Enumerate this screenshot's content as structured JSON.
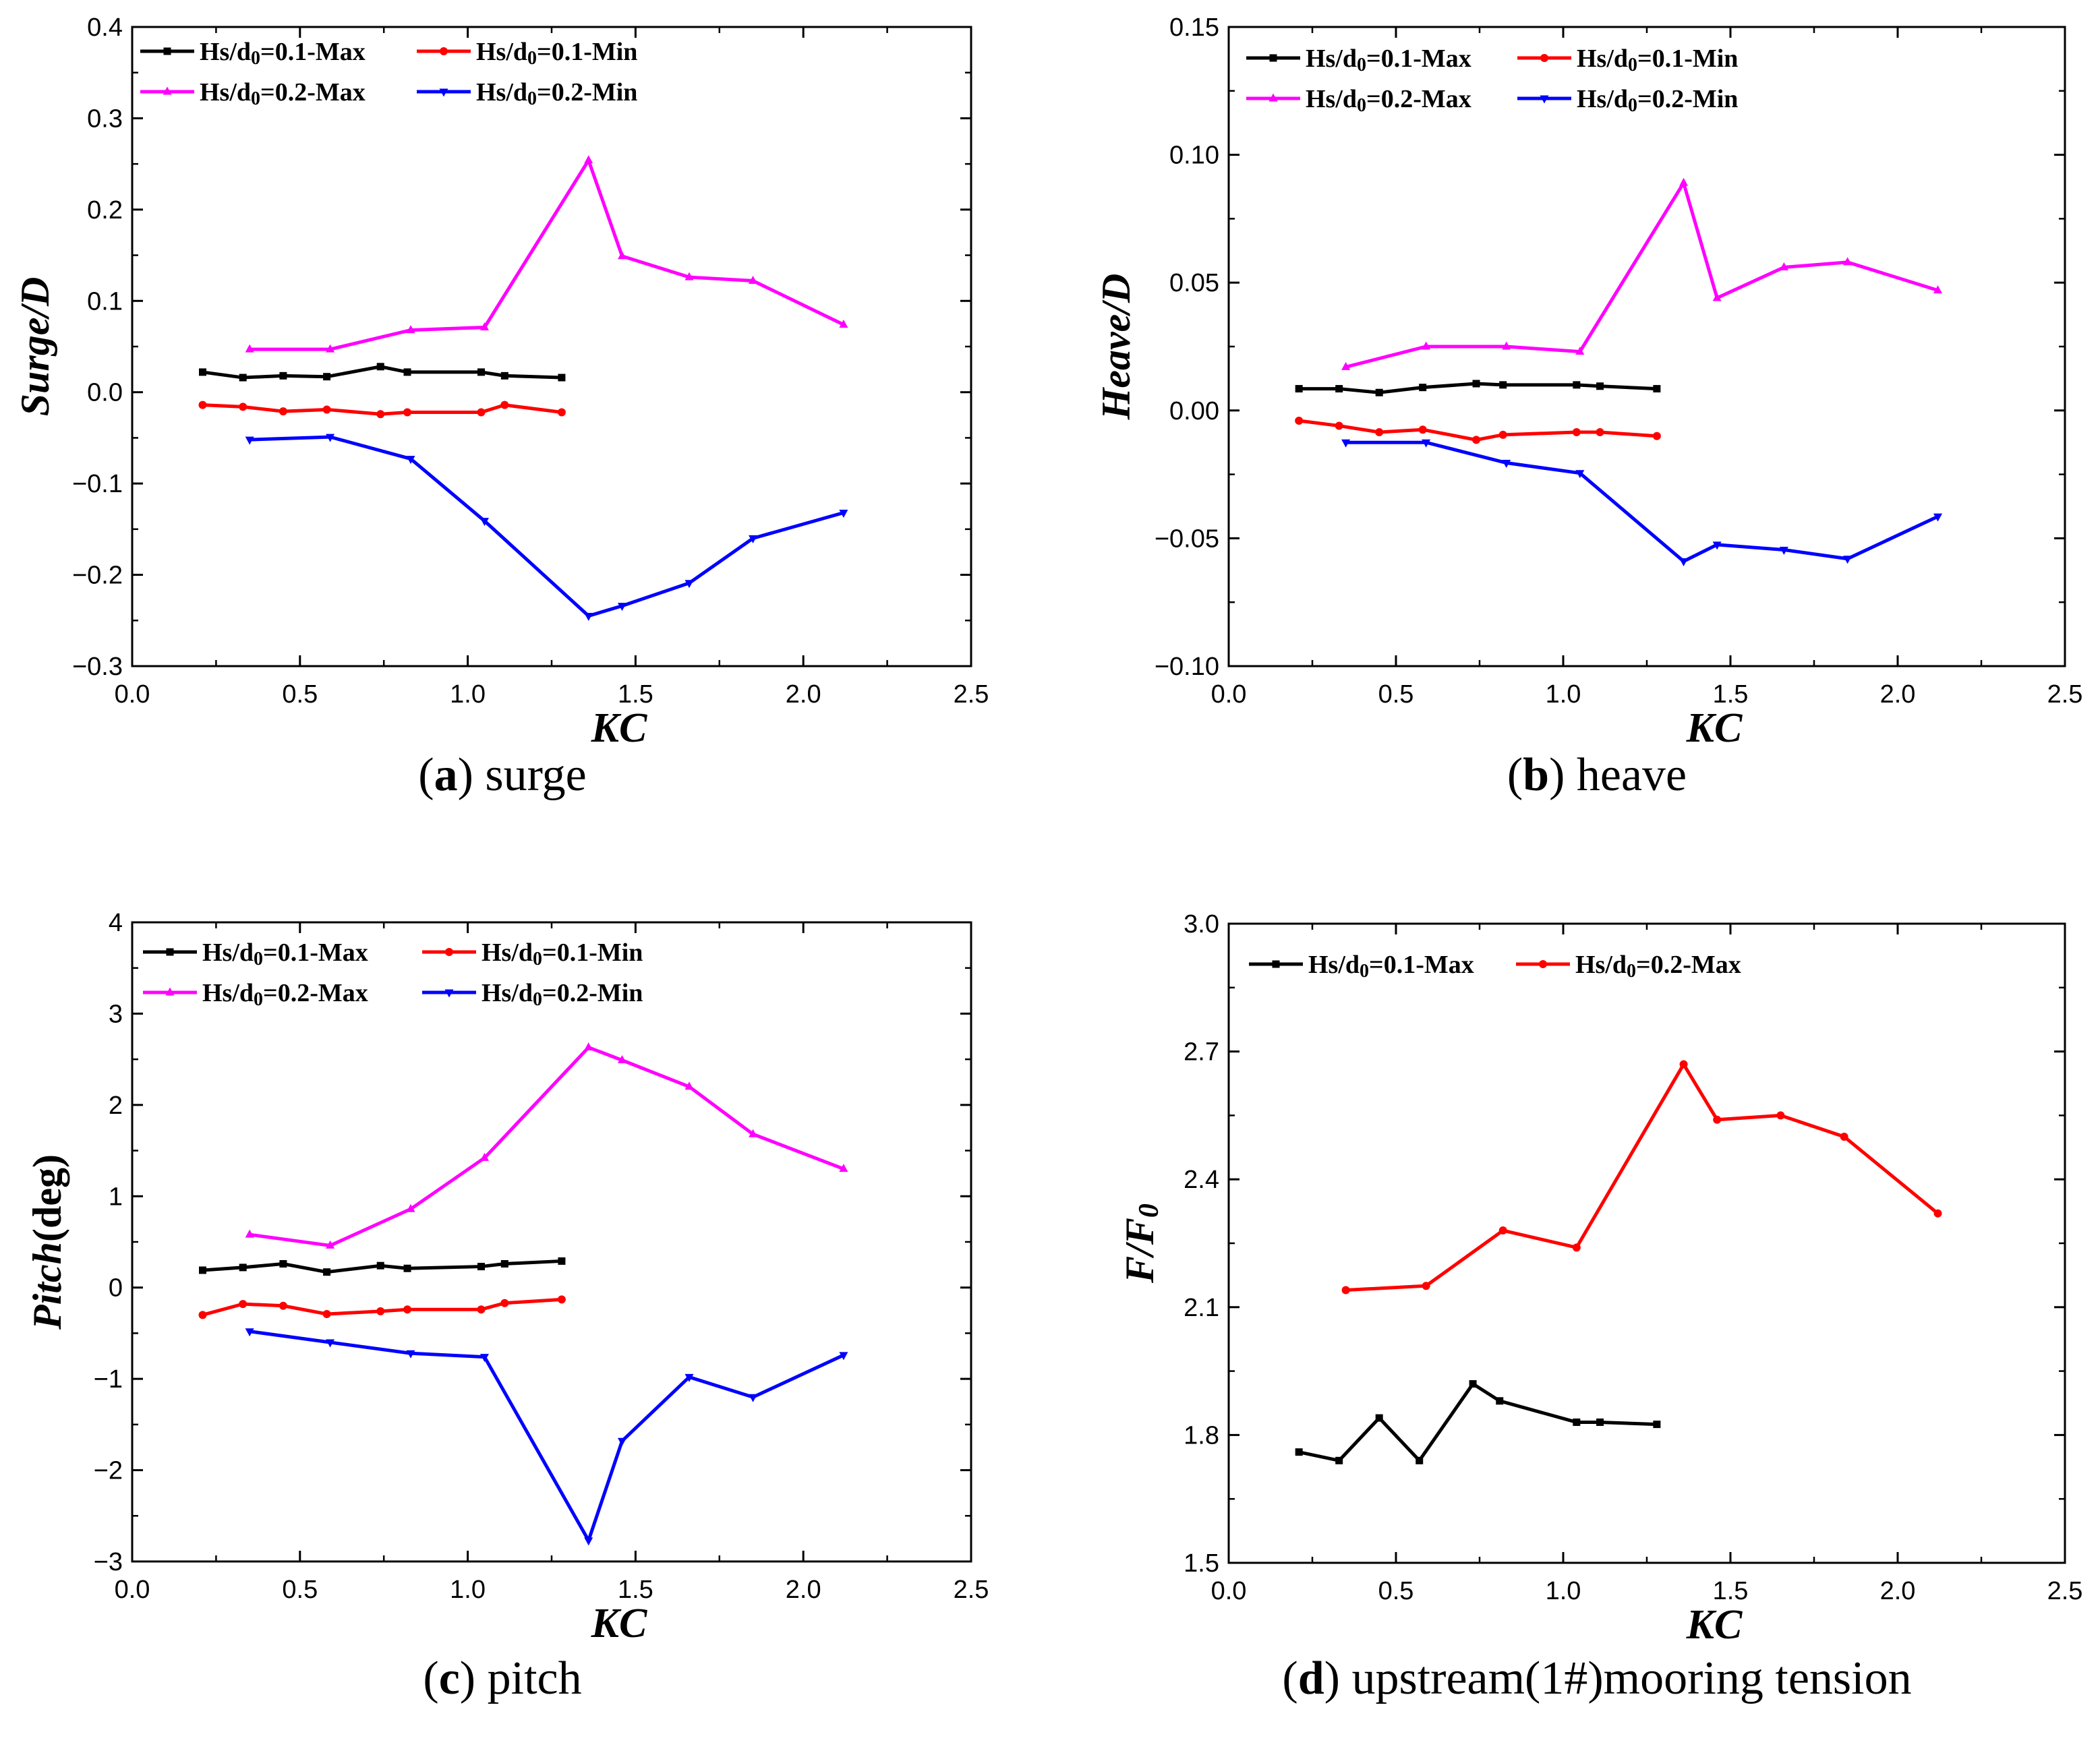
{
  "chart_data": [
    {
      "id": "a",
      "type": "line",
      "caption_letter": "a",
      "caption_text": "surge",
      "ylabel": "Surge/D",
      "ylabel_unit": "",
      "xlabel": "KC",
      "xlim": [
        0.0,
        2.5
      ],
      "ylim": [
        -0.3,
        0.4
      ],
      "xticks": [
        0.0,
        0.5,
        1.0,
        1.5,
        2.0,
        2.5
      ],
      "xtick_labels": [
        "0.0",
        "0.5",
        "1.0",
        "1.5",
        "2.0",
        "2.5"
      ],
      "yticks": [
        -0.3,
        -0.2,
        -0.1,
        0.0,
        0.1,
        0.2,
        0.3,
        0.4
      ],
      "ytick_labels": [
        "−0.3",
        "−0.2",
        "−0.1",
        "0.0",
        "0.1",
        "0.2",
        "0.3",
        "0.4"
      ],
      "legend_columns": 2,
      "legend_location": "top-left",
      "series": [
        {
          "name": "Hs/d0=0.1-Max",
          "color": "#000000",
          "marker": "square",
          "x": [
            0.21,
            0.33,
            0.45,
            0.58,
            0.74,
            0.82,
            1.04,
            1.11,
            1.28
          ],
          "y": [
            0.022,
            0.016,
            0.018,
            0.017,
            0.028,
            0.022,
            0.022,
            0.018,
            0.016
          ]
        },
        {
          "name": "Hs/d0=0.1-Min",
          "color": "#ff0000",
          "marker": "circle",
          "x": [
            0.21,
            0.33,
            0.45,
            0.58,
            0.74,
            0.82,
            1.04,
            1.11,
            1.28
          ],
          "y": [
            -0.014,
            -0.016,
            -0.021,
            -0.019,
            -0.024,
            -0.022,
            -0.022,
            -0.014,
            -0.022
          ]
        },
        {
          "name": "Hs/d0=0.2-Max",
          "color": "#ff00ff",
          "marker": "triangle-up",
          "x": [
            0.35,
            0.59,
            0.83,
            1.05,
            1.36,
            1.46,
            1.66,
            1.85,
            2.12
          ],
          "y": [
            0.047,
            0.047,
            0.068,
            0.071,
            0.254,
            0.149,
            0.126,
            0.122,
            0.074
          ]
        },
        {
          "name": "Hs/d0=0.2-Min",
          "color": "#0000ff",
          "marker": "triangle-down",
          "x": [
            0.35,
            0.59,
            0.83,
            1.05,
            1.36,
            1.46,
            1.66,
            1.85,
            2.12
          ],
          "y": [
            -0.052,
            -0.049,
            -0.073,
            -0.141,
            -0.245,
            -0.234,
            -0.209,
            -0.16,
            -0.132
          ]
        }
      ]
    },
    {
      "id": "b",
      "type": "line",
      "caption_letter": "b",
      "caption_text": "heave",
      "ylabel": "Heave/D",
      "ylabel_unit": "",
      "xlabel": "KC",
      "xlim": [
        0.0,
        2.5
      ],
      "ylim": [
        -0.1,
        0.15
      ],
      "xticks": [
        0.0,
        0.5,
        1.0,
        1.5,
        2.0,
        2.5
      ],
      "xtick_labels": [
        "0.0",
        "0.5",
        "1.0",
        "1.5",
        "2.0",
        "2.5"
      ],
      "yticks": [
        -0.1,
        -0.05,
        0.0,
        0.05,
        0.1,
        0.15
      ],
      "ytick_labels": [
        "−0.10",
        "−0.05",
        "0.00",
        "0.05",
        "0.10",
        "0.15"
      ],
      "legend_columns": 2,
      "legend_location": "top-left",
      "series": [
        {
          "name": "Hs/d0=0.1-Max",
          "color": "#000000",
          "marker": "square",
          "x": [
            0.21,
            0.33,
            0.45,
            0.58,
            0.74,
            0.82,
            1.04,
            1.11,
            1.28
          ],
          "y": [
            0.0085,
            0.0085,
            0.007,
            0.009,
            0.0105,
            0.01,
            0.01,
            0.0095,
            0.0085
          ]
        },
        {
          "name": "Hs/d0=0.1-Min",
          "color": "#ff0000",
          "marker": "circle",
          "x": [
            0.21,
            0.33,
            0.45,
            0.58,
            0.74,
            0.82,
            1.04,
            1.11,
            1.28
          ],
          "y": [
            -0.004,
            -0.006,
            -0.0085,
            -0.0075,
            -0.0115,
            -0.0095,
            -0.0085,
            -0.0085,
            -0.01
          ]
        },
        {
          "name": "Hs/d0=0.2-Max",
          "color": "#ff00ff",
          "marker": "triangle-up",
          "x": [
            0.35,
            0.59,
            0.83,
            1.05,
            1.36,
            1.46,
            1.66,
            1.85,
            2.12
          ],
          "y": [
            0.017,
            0.025,
            0.025,
            0.023,
            0.089,
            0.044,
            0.056,
            0.058,
            0.047
          ]
        },
        {
          "name": "Hs/d0=0.2-Min",
          "color": "#0000ff",
          "marker": "triangle-down",
          "x": [
            0.35,
            0.59,
            0.83,
            1.05,
            1.36,
            1.46,
            1.66,
            1.85,
            2.12
          ],
          "y": [
            -0.0125,
            -0.0125,
            -0.0205,
            -0.0245,
            -0.059,
            -0.0525,
            -0.0545,
            -0.058,
            -0.0415
          ]
        }
      ]
    },
    {
      "id": "c",
      "type": "line",
      "caption_letter": "c",
      "caption_text": "pitch",
      "ylabel": "Pitch",
      "ylabel_unit": "(deg)",
      "xlabel": "KC",
      "xlim": [
        0.0,
        2.5
      ],
      "ylim": [
        -3,
        4
      ],
      "xticks": [
        0.0,
        0.5,
        1.0,
        1.5,
        2.0,
        2.5
      ],
      "xtick_labels": [
        "0.0",
        "0.5",
        "1.0",
        "1.5",
        "2.0",
        "2.5"
      ],
      "yticks": [
        -3,
        -2,
        -1,
        0,
        1,
        2,
        3,
        4
      ],
      "ytick_labels": [
        "−3",
        "−2",
        "−1",
        "0",
        "1",
        "2",
        "3",
        "4"
      ],
      "legend_columns": 2,
      "legend_location": "top-left",
      "series": [
        {
          "name": "Hs/d0=0.1-Max",
          "color": "#000000",
          "marker": "square",
          "x": [
            0.21,
            0.33,
            0.45,
            0.58,
            0.74,
            0.82,
            1.04,
            1.11,
            1.28
          ],
          "y": [
            0.19,
            0.22,
            0.26,
            0.17,
            0.24,
            0.21,
            0.23,
            0.26,
            0.29
          ]
        },
        {
          "name": "Hs/d0=0.1-Min",
          "color": "#ff0000",
          "marker": "circle",
          "x": [
            0.21,
            0.33,
            0.45,
            0.58,
            0.74,
            0.82,
            1.04,
            1.11,
            1.28
          ],
          "y": [
            -0.3,
            -0.18,
            -0.2,
            -0.29,
            -0.26,
            -0.24,
            -0.24,
            -0.17,
            -0.13
          ]
        },
        {
          "name": "Hs/d0=0.2-Max",
          "color": "#ff00ff",
          "marker": "triangle-up",
          "x": [
            0.35,
            0.59,
            0.83,
            1.05,
            1.36,
            1.46,
            1.66,
            1.85,
            2.12
          ],
          "y": [
            0.58,
            0.46,
            0.86,
            1.42,
            2.63,
            2.49,
            2.2,
            1.68,
            1.3
          ]
        },
        {
          "name": "Hs/d0=0.2-Min",
          "color": "#0000ff",
          "marker": "triangle-down",
          "x": [
            0.35,
            0.59,
            0.83,
            1.05,
            1.36,
            1.46,
            1.66,
            1.85,
            2.12
          ],
          "y": [
            -0.48,
            -0.6,
            -0.72,
            -0.76,
            -2.77,
            -1.68,
            -0.98,
            -1.2,
            -0.74
          ]
        }
      ]
    },
    {
      "id": "d",
      "type": "line",
      "caption_letter": "d",
      "caption_text": "upstream(1#)mooring tension",
      "ylabel": "F/F",
      "ylabel_sub": "0",
      "ylabel_unit": "",
      "xlabel": "KC",
      "xlim": [
        0.0,
        2.5
      ],
      "ylim": [
        1.5,
        3.0
      ],
      "xticks": [
        0.0,
        0.5,
        1.0,
        1.5,
        2.0,
        2.5
      ],
      "xtick_labels": [
        "0.0",
        "0.5",
        "1.0",
        "1.5",
        "2.0",
        "2.5"
      ],
      "yticks": [
        1.5,
        1.8,
        2.1,
        2.4,
        2.7,
        3.0
      ],
      "ytick_labels": [
        "1.5",
        "1.8",
        "2.1",
        "2.4",
        "2.7",
        "3.0"
      ],
      "legend_columns": 2,
      "legend_location": "top-left",
      "series": [
        {
          "name": "Hs/d0=0.1-Max",
          "color": "#000000",
          "marker": "square",
          "x": [
            0.21,
            0.33,
            0.45,
            0.57,
            0.73,
            0.81,
            1.04,
            1.11,
            1.28
          ],
          "y": [
            1.76,
            1.74,
            1.84,
            1.74,
            1.92,
            1.88,
            1.83,
            1.83,
            1.825
          ]
        },
        {
          "name": "Hs/d0=0.2-Max",
          "color": "#ff0000",
          "marker": "circle",
          "x": [
            0.35,
            0.59,
            0.82,
            1.04,
            1.36,
            1.46,
            1.65,
            1.84,
            2.12
          ],
          "y": [
            2.14,
            2.15,
            2.28,
            2.24,
            2.67,
            2.54,
            2.55,
            2.5,
            2.32
          ]
        }
      ]
    }
  ]
}
